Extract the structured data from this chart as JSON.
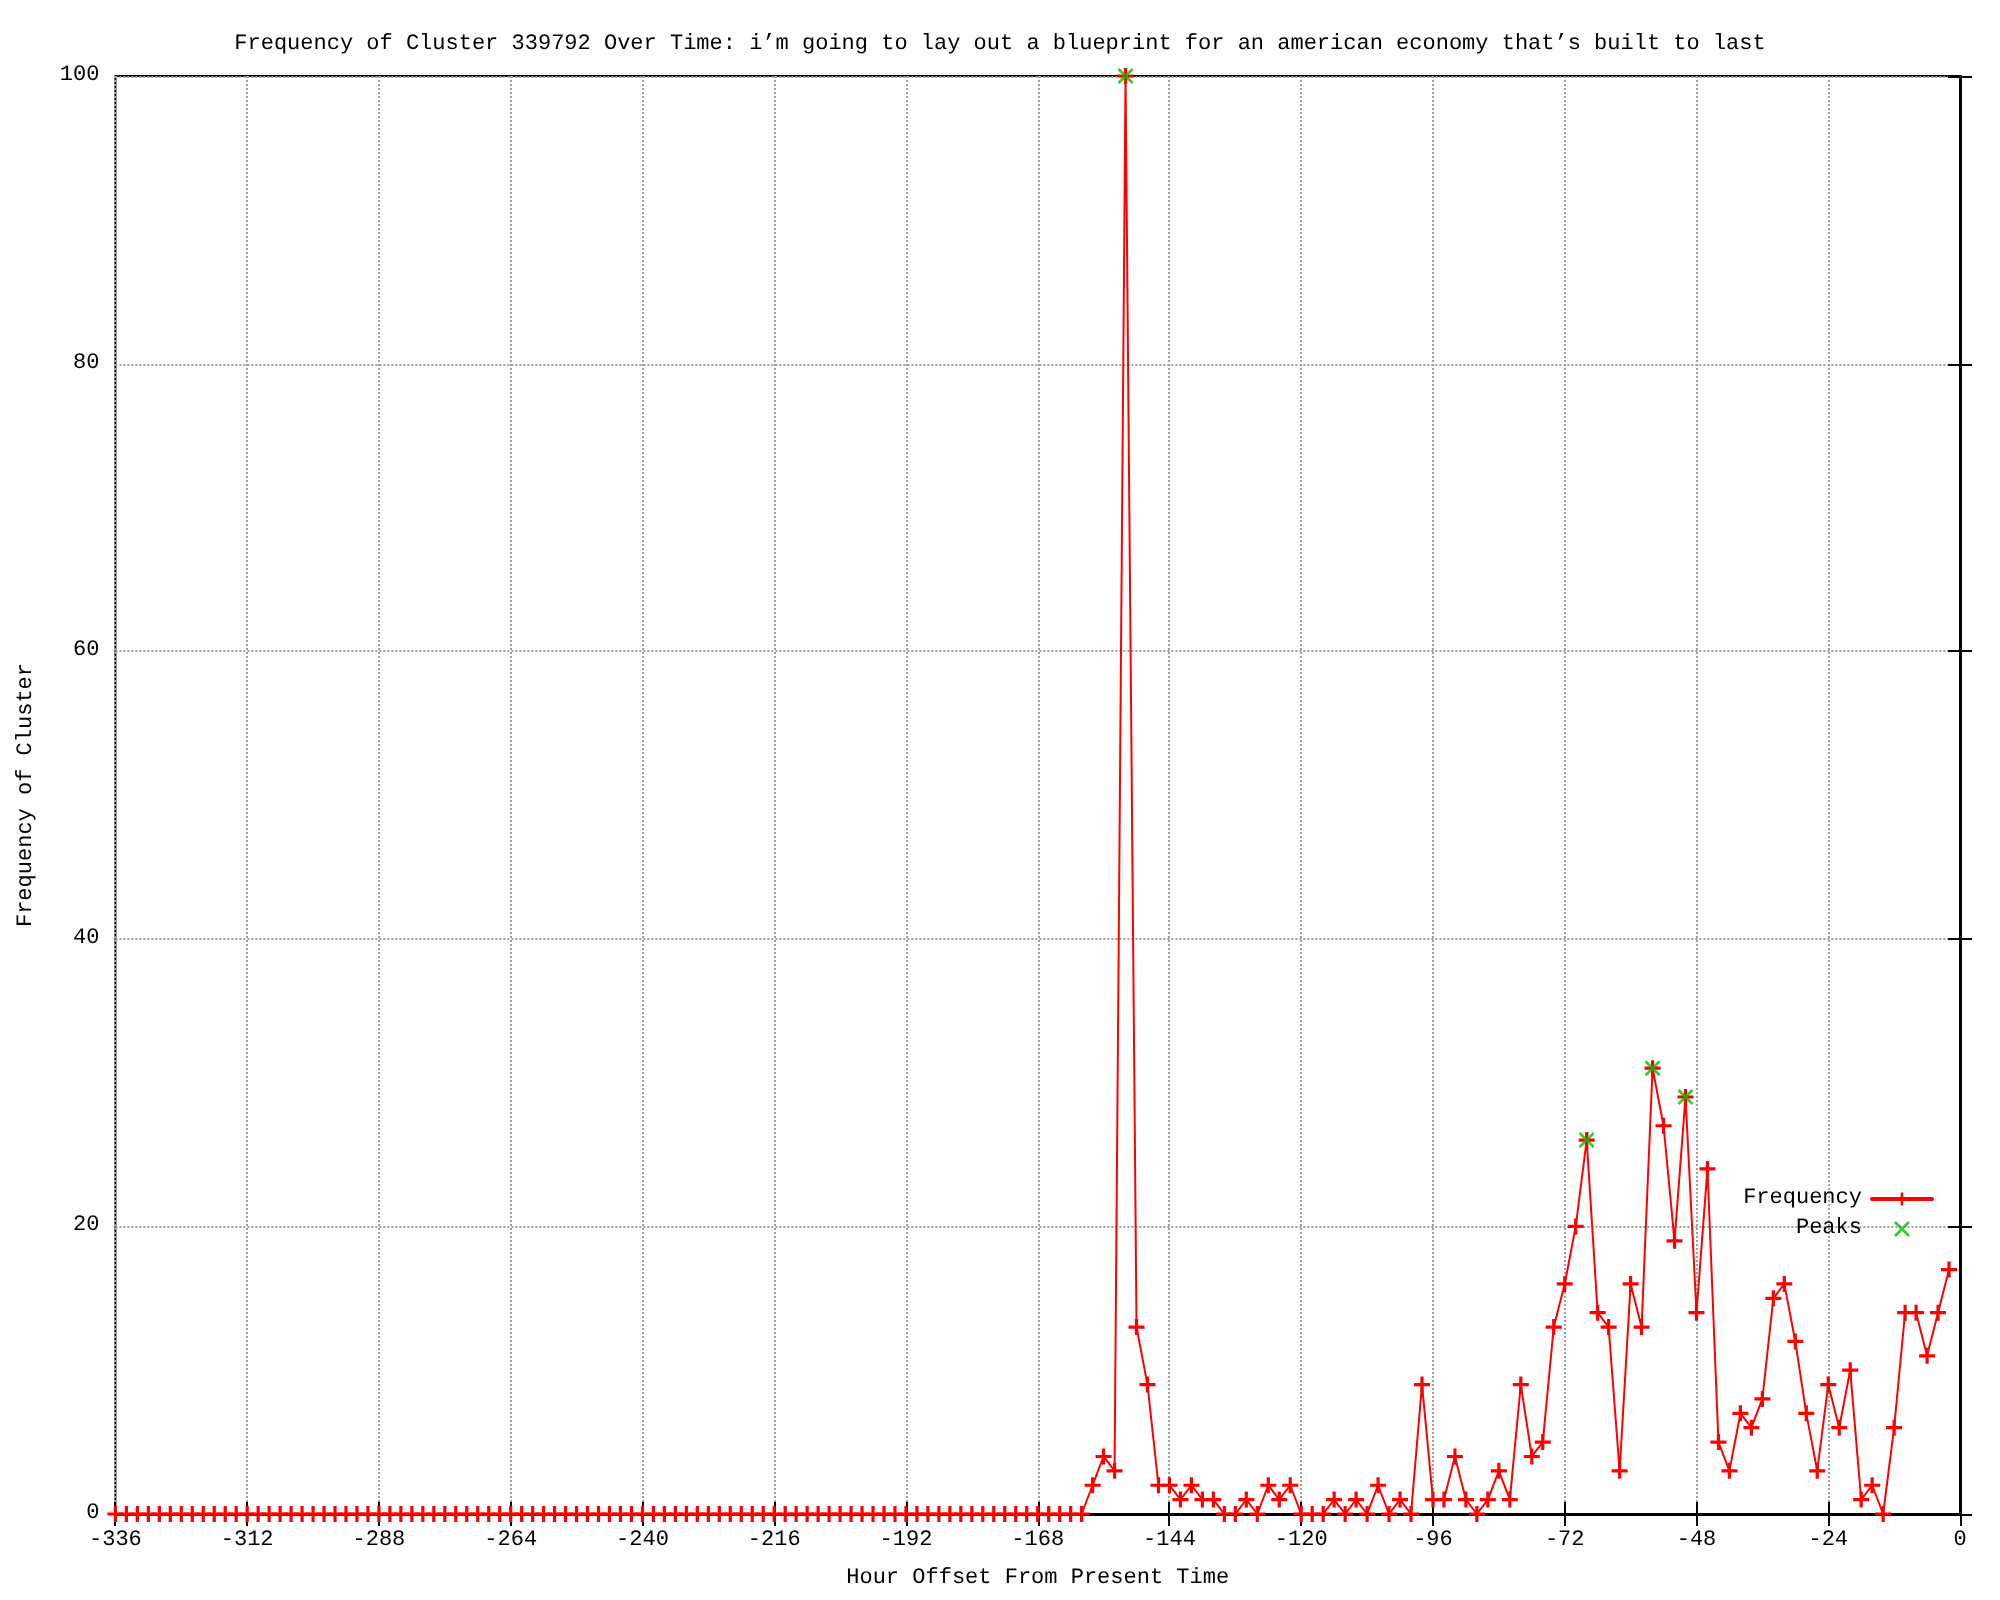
{
  "chart_data": {
    "type": "line",
    "title": "Frequency of Cluster 339792 Over Time: i’m going to lay out a blueprint for an american economy that’s built to last",
    "xlabel": "Hour Offset From Present Time",
    "ylabel": "Frequency of Cluster",
    "x": [
      -336,
      -334,
      -332,
      -330,
      -328,
      -326,
      -324,
      -322,
      -320,
      -318,
      -316,
      -314,
      -312,
      -310,
      -308,
      -306,
      -304,
      -302,
      -300,
      -298,
      -296,
      -294,
      -292,
      -290,
      -288,
      -286,
      -284,
      -282,
      -280,
      -278,
      -276,
      -274,
      -272,
      -270,
      -268,
      -266,
      -264,
      -262,
      -260,
      -258,
      -256,
      -254,
      -252,
      -250,
      -248,
      -246,
      -244,
      -242,
      -240,
      -238,
      -236,
      -234,
      -232,
      -230,
      -228,
      -226,
      -224,
      -222,
      -220,
      -218,
      -216,
      -214,
      -212,
      -210,
      -208,
      -206,
      -204,
      -202,
      -200,
      -198,
      -196,
      -194,
      -192,
      -190,
      -188,
      -186,
      -184,
      -182,
      -180,
      -178,
      -176,
      -174,
      -172,
      -170,
      -168,
      -166,
      -164,
      -162,
      -160,
      -158,
      -156,
      -154,
      -152,
      -150,
      -148,
      -146,
      -144,
      -142,
      -140,
      -138,
      -136,
      -134,
      -132,
      -130,
      -128,
      -126,
      -124,
      -122,
      -120,
      -118,
      -116,
      -114,
      -112,
      -110,
      -108,
      -106,
      -104,
      -102,
      -100,
      -98,
      -96,
      -94,
      -92,
      -90,
      -88,
      -86,
      -84,
      -82,
      -80,
      -78,
      -76,
      -74,
      -72,
      -70,
      -68,
      -66,
      -64,
      -62,
      -60,
      -58,
      -56,
      -54,
      -52,
      -50,
      -48,
      -46,
      -44,
      -42,
      -40,
      -38,
      -36,
      -34,
      -32,
      -30,
      -28,
      -26,
      -24,
      -22,
      -20,
      -18,
      -16,
      -14,
      -12,
      -10,
      -8,
      -6,
      -4,
      -2
    ],
    "series": [
      {
        "name": "Frequency",
        "color": "#ff0000",
        "values": [
          0,
          0,
          0,
          0,
          0,
          0,
          0,
          0,
          0,
          0,
          0,
          0,
          0,
          0,
          0,
          0,
          0,
          0,
          0,
          0,
          0,
          0,
          0,
          0,
          0,
          0,
          0,
          0,
          0,
          0,
          0,
          0,
          0,
          0,
          0,
          0,
          0,
          0,
          0,
          0,
          0,
          0,
          0,
          0,
          0,
          0,
          0,
          0,
          0,
          0,
          0,
          0,
          0,
          0,
          0,
          0,
          0,
          0,
          0,
          0,
          0,
          0,
          0,
          0,
          0,
          0,
          0,
          0,
          0,
          0,
          0,
          0,
          0,
          0,
          0,
          0,
          0,
          0,
          0,
          0,
          0,
          0,
          0,
          0,
          0,
          0,
          0,
          0,
          0,
          2,
          4,
          3,
          100,
          13,
          9,
          2,
          2,
          1,
          2,
          1,
          1,
          0,
          0,
          1,
          0,
          2,
          1,
          2,
          0,
          0,
          0,
          1,
          0,
          1,
          0,
          2,
          0,
          1,
          0,
          9,
          1,
          1,
          4,
          1,
          0,
          1,
          3,
          1,
          9,
          4,
          5,
          13,
          16,
          20,
          26,
          14,
          13,
          3,
          16,
          13,
          31,
          27,
          19,
          29,
          14,
          24,
          5,
          3,
          7,
          6,
          8,
          15,
          16,
          12,
          7,
          3,
          9,
          6,
          10,
          1,
          2,
          0,
          6,
          14,
          14,
          11,
          14,
          17
        ]
      },
      {
        "name": "Peaks",
        "type": "scatter",
        "color": "#00c000",
        "x": [
          -152,
          -68,
          -56,
          -50
        ],
        "values": [
          100,
          26,
          31,
          29
        ]
      }
    ],
    "xlim": [
      -336,
      0
    ],
    "xticks": [
      -336,
      -312,
      -288,
      -264,
      -240,
      -216,
      -192,
      -168,
      -144,
      -120,
      -96,
      -72,
      -48,
      -24,
      0
    ],
    "ylim": [
      0,
      100
    ],
    "yticks": [
      0,
      20,
      40,
      60,
      80,
      100
    ],
    "grid": true,
    "legend": "bottom right",
    "marker": "cross",
    "line_style": "solid"
  }
}
